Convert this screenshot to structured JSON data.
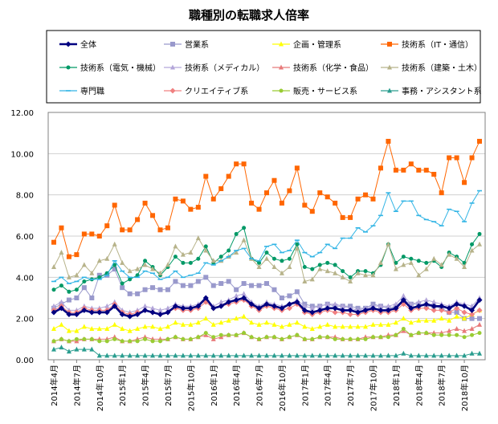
{
  "chart_data": {
    "type": "line",
    "title": "職種別の転職求人倍率",
    "xlabel": "",
    "ylabel": "",
    "ylim": [
      0,
      12
    ],
    "yticks": [
      "0.00",
      "2.00",
      "4.00",
      "6.00",
      "8.00",
      "10.00",
      "12.00"
    ],
    "grid": true,
    "legend_position": "top",
    "x": [
      "2014年4月",
      "2014年5月",
      "2014年6月",
      "2014年7月",
      "2014年8月",
      "2014年9月",
      "2014年10月",
      "2014年11月",
      "2014年12月",
      "2015年1月",
      "2015年2月",
      "2015年3月",
      "2015年4月",
      "2015年5月",
      "2015年6月",
      "2015年7月",
      "2015年8月",
      "2015年9月",
      "2015年10月",
      "2015年11月",
      "2015年12月",
      "2016年1月",
      "2016年2月",
      "2016年3月",
      "2016年4月",
      "2016年5月",
      "2016年6月",
      "2016年7月",
      "2016年8月",
      "2016年9月",
      "2016年10月",
      "2016年11月",
      "2016年12月",
      "2017年1月",
      "2017年2月",
      "2017年3月",
      "2017年4月",
      "2017年5月",
      "2017年6月",
      "2017年7月",
      "2017年8月",
      "2017年9月",
      "2017年10月",
      "2017年11月",
      "2017年12月",
      "2018年1月",
      "2018年2月",
      "2018年3月",
      "2018年4月",
      "2018年5月",
      "2018年6月",
      "2018年7月",
      "2018年8月",
      "2018年9月",
      "2018年10月",
      "2018年11月",
      "2018年12月"
    ],
    "xtick_labels": [
      "2014年4月",
      "2014年7月",
      "2014年10月",
      "2015年1月",
      "2015年4月",
      "2015年7月",
      "2015年10月",
      "2016年1月",
      "2016年4月",
      "2016年7月",
      "2016年10月",
      "2017年1月",
      "2017年4月",
      "2017年7月",
      "2017年10月",
      "2018年1月",
      "2018年4月",
      "2018年7月",
      "2018年10月"
    ],
    "series": [
      {
        "name": "全体",
        "color": "#000080",
        "marker": "diamond",
        "width": 2.6,
        "values": [
          2.3,
          2.5,
          2.2,
          2.2,
          2.4,
          2.3,
          2.3,
          2.3,
          2.6,
          2.2,
          2.1,
          2.2,
          2.4,
          2.3,
          2.2,
          2.3,
          2.6,
          2.5,
          2.5,
          2.6,
          3.0,
          2.5,
          2.6,
          2.8,
          2.9,
          3.0,
          2.7,
          2.5,
          2.7,
          2.6,
          2.5,
          2.7,
          2.8,
          2.4,
          2.3,
          2.4,
          2.5,
          2.5,
          2.4,
          2.4,
          2.3,
          2.4,
          2.5,
          2.4,
          2.4,
          2.5,
          2.9,
          2.5,
          2.6,
          2.7,
          2.6,
          2.6,
          2.5,
          2.7,
          2.6,
          2.4,
          2.9
        ]
      },
      {
        "name": "営業系",
        "color": "#9999cc",
        "marker": "square",
        "width": 1,
        "values": [
          2.5,
          2.7,
          2.9,
          3.0,
          3.5,
          3.0,
          4.1,
          4.1,
          4.4,
          3.5,
          3.2,
          3.2,
          3.4,
          3.5,
          3.4,
          3.4,
          3.8,
          3.6,
          3.6,
          3.8,
          4.0,
          3.6,
          3.7,
          3.8,
          3.4,
          3.7,
          3.6,
          3.6,
          3.7,
          3.4,
          3.0,
          3.1,
          3.3,
          2.7,
          2.6,
          2.6,
          2.7,
          2.6,
          2.6,
          2.6,
          2.5,
          2.5,
          2.7,
          2.6,
          2.5,
          2.6,
          2.9,
          2.7,
          2.7,
          2.6,
          2.6,
          2.5,
          2.3,
          2.3,
          2.0,
          2.0,
          2.0
        ]
      },
      {
        "name": "企画・管理系",
        "color": "#ffff00",
        "marker": "triangle",
        "width": 1,
        "values": [
          1.5,
          1.7,
          1.4,
          1.4,
          1.6,
          1.5,
          1.5,
          1.5,
          1.7,
          1.5,
          1.4,
          1.5,
          1.6,
          1.6,
          1.5,
          1.6,
          1.8,
          1.7,
          1.7,
          1.8,
          2.0,
          1.7,
          1.8,
          1.9,
          2.0,
          2.1,
          1.8,
          1.7,
          1.8,
          1.7,
          1.6,
          1.7,
          1.8,
          1.6,
          1.5,
          1.6,
          1.7,
          1.6,
          1.6,
          1.6,
          1.6,
          1.6,
          1.7,
          1.7,
          1.7,
          1.8,
          2.0,
          1.8,
          1.9,
          1.9,
          1.9,
          2.0,
          1.9,
          2.1,
          2.0,
          2.2,
          2.4
        ]
      },
      {
        "name": "技術系（IT・通信）",
        "color": "#ff6600",
        "marker": "square",
        "width": 1,
        "values": [
          5.7,
          6.4,
          5.0,
          5.1,
          6.1,
          6.1,
          6.0,
          6.5,
          7.5,
          6.3,
          6.3,
          6.8,
          7.6,
          7.0,
          6.3,
          6.4,
          7.8,
          7.7,
          7.3,
          7.4,
          8.9,
          7.8,
          8.3,
          8.9,
          9.5,
          9.5,
          7.6,
          7.3,
          8.1,
          8.7,
          7.6,
          8.2,
          9.3,
          7.5,
          7.2,
          8.1,
          7.9,
          7.6,
          6.9,
          6.9,
          7.8,
          8.0,
          7.8,
          9.3,
          10.6,
          9.2,
          9.2,
          9.5,
          9.2,
          9.2,
          9.0,
          8.1,
          9.8,
          9.8,
          8.6,
          9.8,
          10.6
        ]
      },
      {
        "name": "技術系（電気・機械）",
        "color": "#009966",
        "marker": "circle",
        "width": 1,
        "values": [
          3.4,
          3.6,
          3.3,
          3.4,
          3.8,
          3.9,
          4.0,
          4.2,
          4.6,
          3.7,
          3.9,
          4.1,
          4.8,
          4.5,
          4.1,
          4.5,
          5.0,
          4.7,
          4.7,
          4.9,
          5.5,
          4.7,
          5.0,
          5.3,
          6.1,
          6.4,
          4.9,
          4.7,
          5.2,
          4.9,
          4.8,
          4.9,
          5.6,
          4.5,
          4.4,
          4.6,
          4.7,
          4.6,
          4.3,
          4.0,
          4.3,
          4.3,
          4.2,
          4.6,
          5.6,
          4.7,
          5.0,
          4.9,
          4.8,
          4.7,
          4.8,
          4.5,
          5.2,
          5.0,
          4.7,
          5.6,
          6.1
        ]
      },
      {
        "name": "技術系（メディカル）",
        "color": "#b3a6d9",
        "marker": "triangle",
        "width": 1,
        "values": [
          2.6,
          2.8,
          2.4,
          2.4,
          2.6,
          2.5,
          2.5,
          2.6,
          2.8,
          2.4,
          2.3,
          2.4,
          2.6,
          2.5,
          2.4,
          2.5,
          2.7,
          2.6,
          2.6,
          2.7,
          3.0,
          2.6,
          2.8,
          2.9,
          3.1,
          3.2,
          2.8,
          2.6,
          2.8,
          2.7,
          2.6,
          2.7,
          2.9,
          2.6,
          2.5,
          2.6,
          2.7,
          2.7,
          2.6,
          2.5,
          2.4,
          2.5,
          2.6,
          2.6,
          2.6,
          2.7,
          3.1,
          2.7,
          2.8,
          2.9,
          2.8,
          2.7,
          2.6,
          2.8,
          2.7,
          2.6,
          3.0
        ]
      },
      {
        "name": "技術系（化学・食品）",
        "color": "#e87a7a",
        "marker": "triangle",
        "width": 1,
        "values": [
          0.9,
          1.0,
          0.9,
          0.9,
          1.0,
          1.0,
          1.0,
          1.0,
          1.1,
          0.9,
          0.9,
          1.0,
          1.1,
          1.0,
          1.0,
          1.0,
          1.1,
          1.0,
          1.0,
          1.1,
          1.2,
          1.0,
          1.1,
          1.2,
          1.2,
          1.3,
          1.1,
          1.0,
          1.1,
          1.1,
          1.0,
          1.1,
          1.2,
          1.0,
          1.0,
          1.1,
          1.1,
          1.1,
          1.0,
          1.0,
          1.0,
          1.1,
          1.1,
          1.1,
          1.2,
          1.2,
          1.4,
          1.2,
          1.3,
          1.3,
          1.3,
          1.3,
          1.4,
          1.5,
          1.4,
          1.5,
          1.7
        ]
      },
      {
        "name": "技術系（建築・土木）",
        "color": "#b7b38a",
        "marker": "triangle",
        "width": 1,
        "values": [
          4.5,
          5.2,
          4.0,
          4.1,
          4.6,
          4.2,
          4.8,
          4.9,
          5.6,
          4.7,
          4.3,
          4.4,
          4.6,
          4.4,
          4.2,
          4.6,
          5.5,
          5.1,
          5.2,
          5.9,
          5.3,
          4.8,
          4.8,
          5.0,
          5.2,
          5.8,
          4.9,
          4.5,
          4.9,
          4.5,
          4.2,
          4.5,
          5.4,
          3.8,
          3.9,
          4.4,
          4.3,
          4.2,
          4.0,
          3.8,
          4.2,
          4.1,
          4.1,
          4.7,
          5.6,
          4.4,
          4.6,
          4.7,
          4.1,
          4.4,
          4.9,
          4.6,
          5.1,
          4.9,
          4.5,
          5.3,
          5.6
        ]
      },
      {
        "name": "専門職",
        "color": "#33b5e5",
        "marker": "dash",
        "width": 1,
        "values": [
          3.8,
          4.0,
          3.7,
          3.8,
          4.0,
          3.9,
          3.9,
          4.1,
          4.8,
          4.3,
          4.0,
          4.0,
          4.3,
          4.2,
          3.9,
          4.0,
          4.3,
          4.0,
          4.1,
          4.2,
          4.7,
          4.6,
          4.8,
          5.0,
          5.3,
          5.4,
          4.9,
          4.8,
          5.5,
          5.6,
          5.2,
          5.3,
          5.8,
          5.2,
          5.0,
          5.2,
          5.6,
          5.4,
          5.9,
          5.9,
          6.4,
          6.2,
          6.5,
          7.0,
          8.1,
          7.2,
          7.7,
          7.7,
          7.0,
          6.8,
          6.7,
          6.5,
          7.3,
          7.2,
          6.7,
          7.6,
          8.2
        ]
      },
      {
        "name": "クリエイティブ系",
        "color": "#f08080",
        "marker": "diamond",
        "width": 1,
        "values": [
          2.4,
          2.6,
          2.3,
          2.3,
          2.5,
          2.4,
          2.4,
          2.4,
          2.7,
          2.3,
          2.2,
          2.3,
          2.4,
          2.3,
          2.2,
          2.3,
          2.5,
          2.4,
          2.4,
          2.5,
          2.8,
          2.5,
          2.6,
          2.7,
          2.8,
          2.9,
          2.6,
          2.4,
          2.6,
          2.5,
          2.4,
          2.5,
          2.7,
          2.3,
          2.2,
          2.3,
          2.4,
          2.3,
          2.3,
          2.2,
          2.2,
          2.3,
          2.4,
          2.3,
          2.3,
          2.4,
          2.7,
          2.4,
          2.5,
          2.5,
          2.4,
          2.4,
          2.3,
          2.5,
          2.3,
          2.2,
          2.4
        ]
      },
      {
        "name": "販売・サービス系",
        "color": "#99cc33",
        "marker": "circle",
        "width": 1,
        "values": [
          0.9,
          1.0,
          0.9,
          1.0,
          1.0,
          1.0,
          0.9,
          0.9,
          1.0,
          0.9,
          0.9,
          0.9,
          1.0,
          0.9,
          0.9,
          1.0,
          1.1,
          1.0,
          1.0,
          1.1,
          1.3,
          1.1,
          1.2,
          1.2,
          1.2,
          1.3,
          1.1,
          1.0,
          1.1,
          1.1,
          1.0,
          1.1,
          1.2,
          1.0,
          1.0,
          1.1,
          1.1,
          1.0,
          1.0,
          1.0,
          1.0,
          1.0,
          1.1,
          1.1,
          1.1,
          1.2,
          1.5,
          1.2,
          1.3,
          1.3,
          1.2,
          1.2,
          1.2,
          1.2,
          1.1,
          1.2,
          1.3
        ]
      },
      {
        "name": "事務・アシスタント系",
        "color": "#2a9d8f",
        "marker": "triangle",
        "width": 1,
        "values": [
          0.5,
          0.6,
          0.4,
          0.5,
          0.5,
          0.5,
          0.2,
          0.2,
          0.2,
          0.2,
          0.2,
          0.2,
          0.2,
          0.2,
          0.2,
          0.2,
          0.2,
          0.2,
          0.2,
          0.2,
          0.2,
          0.2,
          0.2,
          0.2,
          0.2,
          0.2,
          0.2,
          0.2,
          0.2,
          0.2,
          0.2,
          0.2,
          0.2,
          0.2,
          0.2,
          0.2,
          0.2,
          0.2,
          0.2,
          0.2,
          0.2,
          0.2,
          0.2,
          0.2,
          0.2,
          0.2,
          0.3,
          0.2,
          0.2,
          0.2,
          0.2,
          0.2,
          0.2,
          0.2,
          0.2,
          0.3,
          0.3
        ]
      }
    ]
  }
}
